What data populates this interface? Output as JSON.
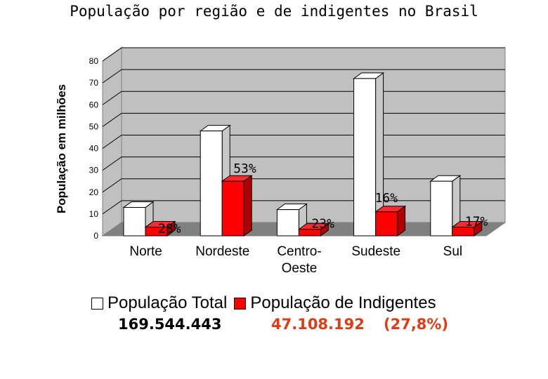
{
  "chart_data": {
    "type": "bar",
    "title": "População por região e de indigentes no Brasil",
    "ylabel": "População em milhões",
    "xlabel": "",
    "ylim": [
      0,
      80
    ],
    "yticks": [
      0,
      10,
      20,
      30,
      40,
      50,
      60,
      70,
      80
    ],
    "categories": [
      "Norte",
      "Nordeste",
      "Centro-Oeste",
      "Sudeste",
      "Sul"
    ],
    "category_lines": [
      [
        "Norte"
      ],
      [
        "Nordeste"
      ],
      [
        "Centro-",
        "Oeste"
      ],
      [
        "Sudeste"
      ],
      [
        "Sul"
      ]
    ],
    "series": [
      {
        "name": "População Total",
        "values": [
          13,
          48,
          12,
          72,
          25
        ],
        "color": "#ffffff"
      },
      {
        "name": "População de Indigentes",
        "values": [
          4,
          25,
          3,
          11,
          4
        ],
        "color": "#ff0000"
      }
    ],
    "data_labels": [
      "28%",
      "53%",
      "23%",
      "16%",
      "17%"
    ],
    "grid": true,
    "legend": "bottom"
  },
  "totals": {
    "total": "169.544.443",
    "indigentes": "47.108.192",
    "percent": "(27,8%)"
  }
}
